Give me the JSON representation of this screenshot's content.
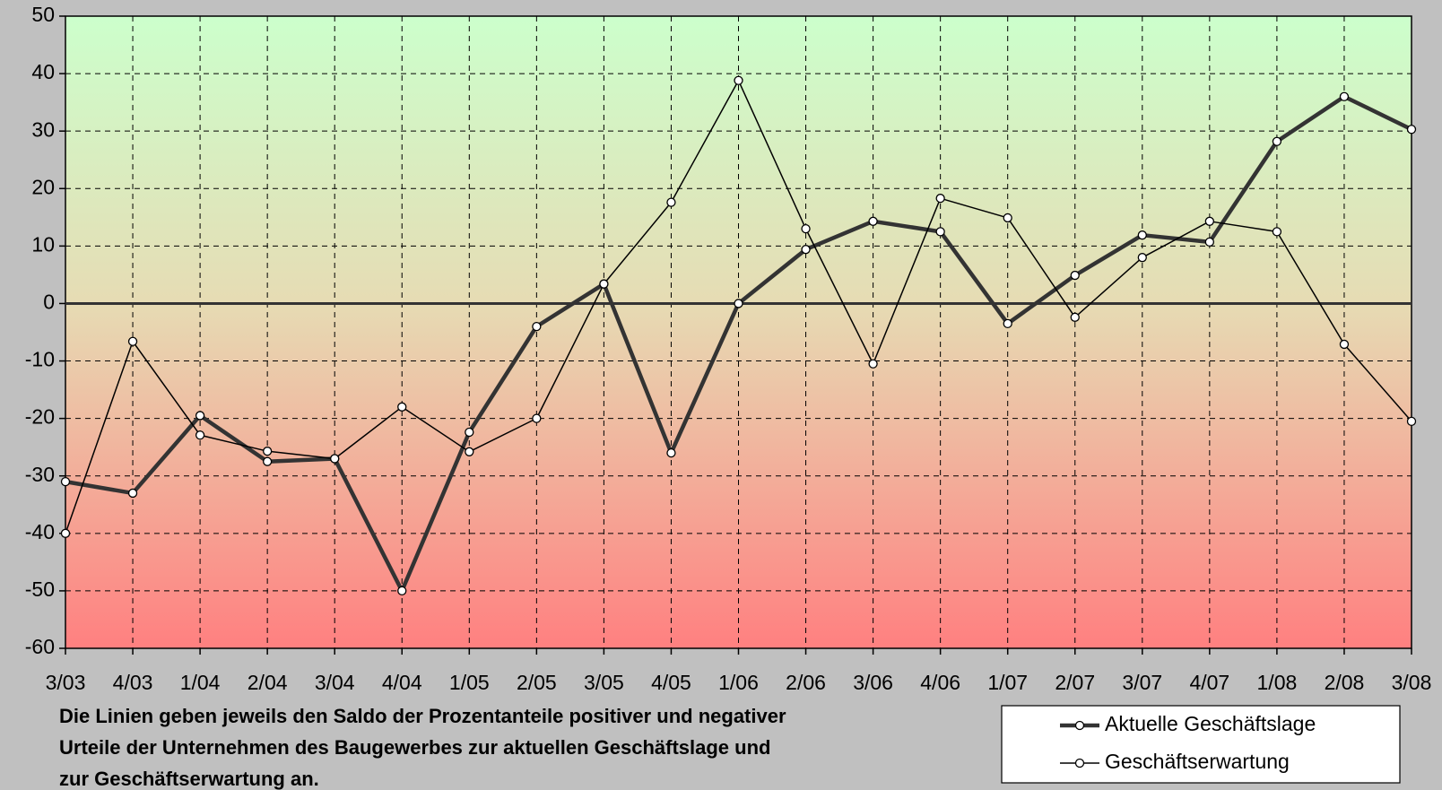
{
  "chart_data": {
    "type": "line",
    "categories": [
      "3/03",
      "4/03",
      "1/04",
      "2/04",
      "3/04",
      "4/04",
      "1/05",
      "2/05",
      "3/05",
      "4/05",
      "1/06",
      "2/06",
      "3/06",
      "4/06",
      "1/07",
      "2/07",
      "3/07",
      "4/07",
      "1/08",
      "2/08",
      "3/08"
    ],
    "series": [
      {
        "name": "Aktuelle Geschäftslage",
        "color": "#333333",
        "values": [
          -31,
          -33,
          -19.5,
          -27.5,
          -27,
          -50,
          -22.4,
          -4,
          3.4,
          -26,
          0,
          9.4,
          14.3,
          12.5,
          -3.5,
          4.9,
          11.9,
          10.7,
          28.2,
          36,
          30.3
        ]
      },
      {
        "name": "Geschäftserwartung",
        "color": "#000000",
        "values": [
          -40,
          -6.6,
          -22.9,
          -25.7,
          -27,
          -18,
          -25.8,
          -20,
          3.4,
          17.6,
          38.8,
          13,
          -10.5,
          18.3,
          14.9,
          -2.4,
          8,
          14.3,
          12.5,
          -7.1,
          -20.5
        ]
      }
    ],
    "ylim": [
      -60,
      50
    ],
    "yticks": [
      -60,
      -50,
      -40,
      -30,
      -20,
      -10,
      0,
      10,
      20,
      30,
      40,
      50
    ],
    "grid": true,
    "annotation": [
      "Die Linien geben jeweils den Saldo der Prozentanteile positiver und negativer",
      "Urteile der Unternehmen des Baugewerbes zur aktuellen Geschäftslage und",
      "zur Geschäftserwartung an."
    ],
    "legend": "bottom-right"
  }
}
